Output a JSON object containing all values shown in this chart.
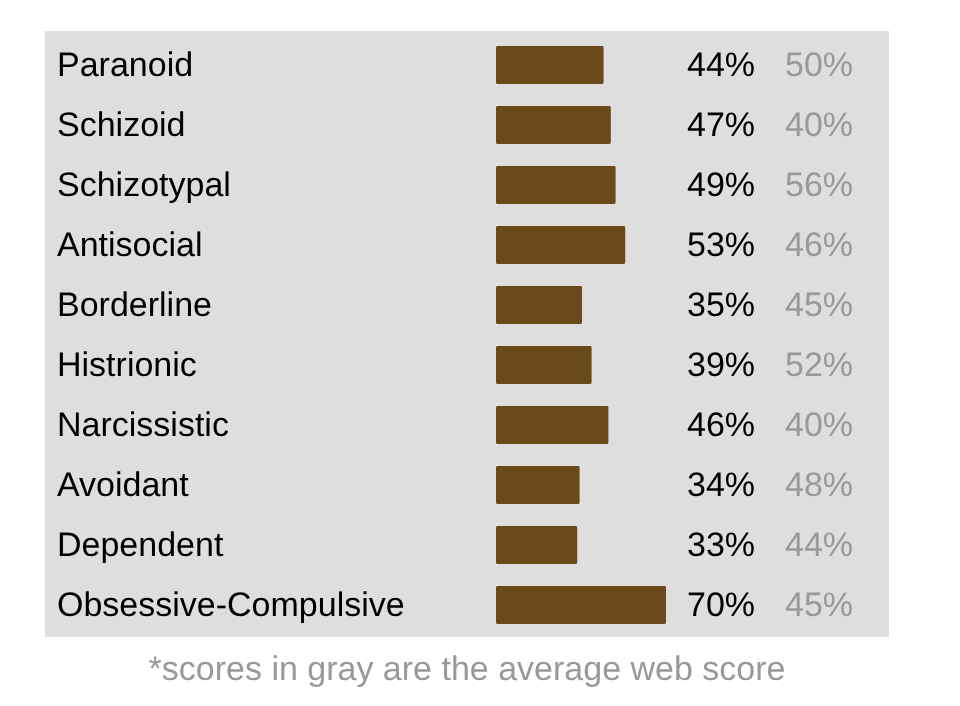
{
  "chart_data": {
    "type": "bar",
    "orientation": "horizontal",
    "categories": [
      "Paranoid",
      "Schizoid",
      "Schizotypal",
      "Antisocial",
      "Borderline",
      "Histrionic",
      "Narcissistic",
      "Avoidant",
      "Dependent",
      "Obsessive-Compulsive"
    ],
    "values": [
      44,
      47,
      49,
      53,
      35,
      39,
      46,
      34,
      33,
      70
    ],
    "value_labels": [
      "44%",
      "47%",
      "49%",
      "53%",
      "35%",
      "39%",
      "46%",
      "34%",
      "33%",
      "70%"
    ],
    "color": "#6b4a1a",
    "annotations": [
      "50%",
      "40%",
      "56%",
      "46%",
      "45%",
      "52%",
      "40%",
      "48%",
      "44%",
      "45%",
      "*scores in gray are the average web score"
    ]
  }
}
